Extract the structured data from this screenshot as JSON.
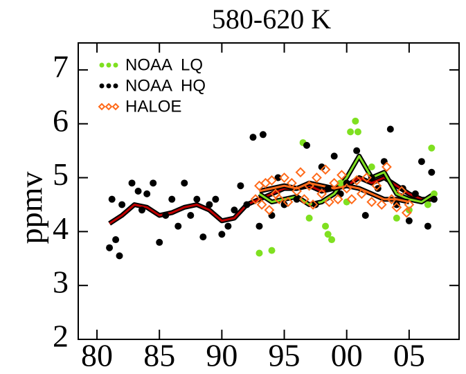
{
  "chart_data": {
    "type": "scatter",
    "title": "580-620 K",
    "y_label": "ppmv",
    "xlim": [
      1978.5,
      2009
    ],
    "ylim": [
      2,
      7.5
    ],
    "xticks": [
      {
        "value": 1980,
        "label": "80"
      },
      {
        "value": 1985,
        "label": "85"
      },
      {
        "value": 1990,
        "label": "90"
      },
      {
        "value": 1995,
        "label": "95"
      },
      {
        "value": 2000,
        "label": "00"
      },
      {
        "value": 2005,
        "label": "05"
      }
    ],
    "yticks": [
      2,
      3,
      4,
      5,
      6,
      7
    ],
    "legend": "upper left",
    "series": [
      {
        "name": "NOAA  LQ",
        "color": "#7fe020",
        "marker": "dot",
        "x": [
          1993.0,
          1994.0,
          1996.5,
          1997.0,
          1998.3,
          1998.5,
          1998.8,
          1999.5,
          2000.0,
          2000.3,
          2000.7,
          2000.9,
          2002.0,
          2004.0,
          2005.0,
          2006.5,
          2006.8,
          2007.0
        ],
        "values": [
          3.6,
          3.65,
          5.65,
          4.25,
          4.1,
          3.95,
          3.85,
          4.9,
          4.55,
          5.85,
          6.05,
          5.85,
          5.2,
          4.25,
          4.4,
          4.5,
          5.55,
          4.7
        ]
      },
      {
        "name": "NOAA  HQ",
        "color": "#000000",
        "marker": "dot",
        "x": [
          1981.0,
          1981.2,
          1981.5,
          1981.8,
          1982.0,
          1982.8,
          1983.3,
          1983.6,
          1984.0,
          1984.5,
          1985.0,
          1985.5,
          1986.0,
          1986.5,
          1987.0,
          1987.5,
          1988.0,
          1988.5,
          1989.0,
          1989.5,
          1990.0,
          1990.5,
          1991.0,
          1991.5,
          1992.0,
          1992.5,
          1993.0,
          1993.3,
          1994.0,
          1994.5,
          1995.0,
          1996.0,
          1996.8,
          1997.5,
          1998.0,
          1998.5,
          1999.0,
          1999.5,
          2000.0,
          2000.8,
          2001.5,
          2002.0,
          2002.5,
          2003.0,
          2003.5,
          2004.0,
          2004.5,
          2005.0,
          2005.5,
          2006.0,
          2006.5,
          2006.8,
          2007.0
        ],
        "values": [
          3.7,
          4.6,
          3.85,
          3.55,
          4.5,
          4.9,
          4.75,
          4.4,
          4.7,
          4.9,
          3.8,
          4.3,
          4.6,
          4.1,
          4.9,
          4.3,
          4.6,
          3.9,
          4.5,
          4.6,
          3.95,
          4.1,
          4.4,
          4.85,
          4.5,
          5.75,
          4.1,
          5.8,
          4.3,
          5.0,
          4.5,
          4.6,
          5.6,
          4.5,
          5.2,
          4.8,
          5.4,
          4.7,
          4.9,
          5.5,
          4.3,
          5.0,
          4.8,
          5.3,
          5.9,
          4.5,
          4.8,
          4.2,
          4.7,
          5.3,
          4.1,
          5.1,
          4.6
        ]
      },
      {
        "name": "HALOE",
        "color": "#ff6a1a",
        "marker": "diamond",
        "x": [
          1992.7,
          1993.0,
          1993.2,
          1993.5,
          1993.8,
          1994.0,
          1994.3,
          1994.6,
          1995.0,
          1995.3,
          1995.6,
          1996.0,
          1996.3,
          1996.6,
          1997.0,
          1997.3,
          1997.6,
          1998.0,
          1998.3,
          1998.6,
          1999.0,
          1999.3,
          1999.6,
          2000.0,
          2000.4,
          2000.8,
          2001.2,
          2001.6,
          2002.0,
          2002.4,
          2002.8,
          2003.2,
          2003.6,
          2004.0,
          2004.4,
          2004.8,
          2005.0
        ],
        "values": [
          4.6,
          4.85,
          4.5,
          4.9,
          4.4,
          4.95,
          4.7,
          4.6,
          5.0,
          4.55,
          4.9,
          4.75,
          5.1,
          4.6,
          4.85,
          4.5,
          5.0,
          4.7,
          5.15,
          4.55,
          4.9,
          4.6,
          5.05,
          4.8,
          4.6,
          4.95,
          4.7,
          5.0,
          4.55,
          4.85,
          4.5,
          5.2,
          4.6,
          4.45,
          4.75,
          4.35,
          4.5
        ]
      }
    ],
    "smooth_lines": [
      {
        "color": "#c00000",
        "x": [
          1981,
          1982,
          1983,
          1984,
          1985,
          1986,
          1987,
          1988,
          1989,
          1990,
          1991,
          1992,
          1993,
          1994,
          1995,
          1996,
          1997,
          1998,
          1999,
          2000,
          2001,
          2002,
          2003,
          2004,
          2005,
          2006,
          2007
        ],
        "values": [
          4.15,
          4.3,
          4.5,
          4.45,
          4.3,
          4.35,
          4.45,
          4.5,
          4.4,
          4.2,
          4.25,
          4.5,
          4.6,
          4.7,
          4.8,
          4.8,
          4.85,
          4.75,
          4.8,
          4.85,
          5.0,
          4.9,
          5.0,
          4.85,
          4.7,
          4.6,
          4.6
        ]
      },
      {
        "color": "#7fe020",
        "x": [
          1993,
          1994,
          1995,
          1996,
          1997,
          1998,
          1999,
          2000,
          2001,
          2002,
          2003,
          2004,
          2005,
          2006,
          2007
        ],
        "values": [
          4.7,
          4.55,
          4.6,
          4.65,
          4.5,
          4.55,
          4.7,
          5.0,
          5.4,
          5.0,
          5.1,
          4.7,
          4.6,
          4.55,
          4.7
        ]
      },
      {
        "color": "#ff6a1a",
        "x": [
          1993,
          1994,
          1995,
          1996,
          1997,
          1998,
          1999,
          2000,
          2001,
          2002,
          2003,
          2004,
          2005
        ],
        "values": [
          4.75,
          4.8,
          4.85,
          4.8,
          4.9,
          4.85,
          4.8,
          4.85,
          4.8,
          4.7,
          4.6,
          4.6,
          4.55
        ]
      }
    ]
  }
}
